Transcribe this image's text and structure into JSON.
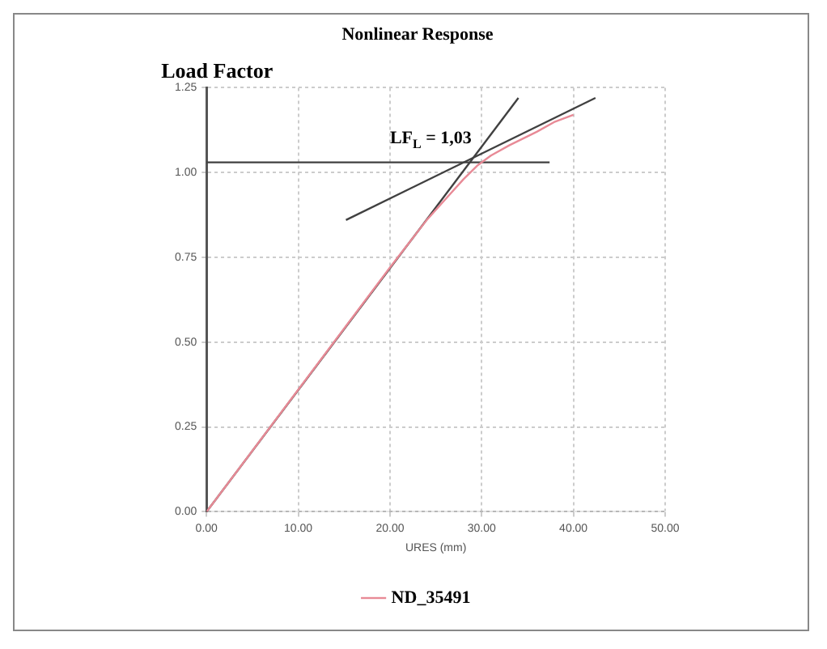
{
  "chart_data": {
    "type": "line",
    "title": "Nonlinear Response",
    "ylabel": "Load Factor",
    "xlabel": "URES (mm)",
    "series": [
      {
        "name": "ND_35491",
        "color": "#e88a96",
        "x": [
          0,
          5,
          10,
          15,
          20,
          24,
          26,
          28,
          29.5,
          31,
          33,
          36,
          38,
          40
        ],
        "values": [
          0,
          0.18,
          0.36,
          0.54,
          0.72,
          0.86,
          0.92,
          0.98,
          1.02,
          1.05,
          1.08,
          1.12,
          1.15,
          1.17
        ]
      },
      {
        "color": "#404040",
        "x": [
          0,
          34
        ],
        "values": [
          0,
          1.22
        ]
      },
      {
        "color": "#404040",
        "x": [
          15.2,
          42.4
        ],
        "values": [
          0.86,
          1.22
        ]
      },
      {
        "color": "#404040",
        "x": [
          0,
          37.4
        ],
        "values": [
          1.03,
          1.03
        ]
      }
    ],
    "annotations": [
      "LF$_{L}$ = 1,03"
    ],
    "xlim": [
      0,
      50
    ],
    "xticks": [
      {
        "value": 0,
        "label": "0.00"
      },
      {
        "value": 10,
        "label": "10.00"
      },
      {
        "value": 20,
        "label": "20.00"
      },
      {
        "value": 30,
        "label": "30.00"
      },
      {
        "value": 40,
        "label": "40.00"
      },
      {
        "value": 50,
        "label": "50.00"
      }
    ],
    "ylim": [
      0,
      1.25
    ],
    "yticks": [
      {
        "value": 0,
        "label": "0.00"
      },
      {
        "value": 0.25,
        "label": "0.25"
      },
      {
        "value": 0.5,
        "label": "0.50"
      },
      {
        "value": 0.75,
        "label": "0.75"
      },
      {
        "value": 1,
        "label": "1.00"
      },
      {
        "value": 1.25,
        "label": "1.25"
      }
    ],
    "grid": true,
    "legend": "bottom"
  }
}
